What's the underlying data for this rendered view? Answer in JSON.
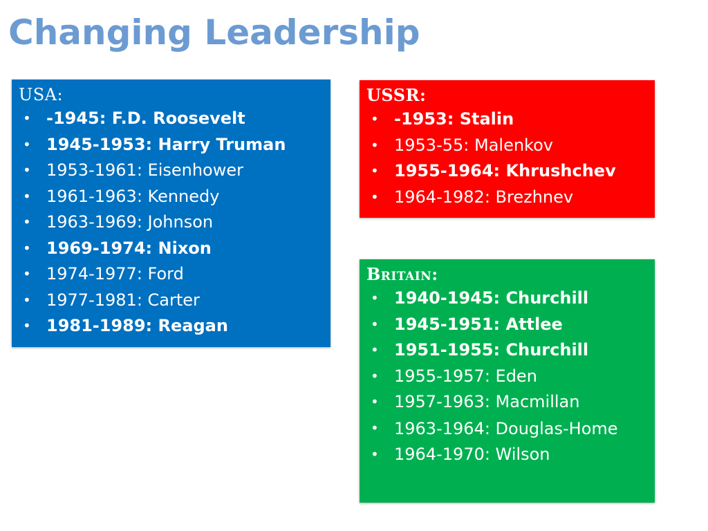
{
  "title": "Changing Leadership",
  "colors": {
    "title": "#6c9bd2",
    "usa": "#0070c0",
    "ussr": "#ff0000",
    "britain": "#00b050",
    "text": "#ffffff"
  },
  "bullet_glyph": "•",
  "usa": {
    "heading": "USA:",
    "items": [
      {
        "text": "-1945: F.D. Roosevelt",
        "bold": true
      },
      {
        "text": "1945-1953: Harry Truman",
        "bold": true
      },
      {
        "text": "1953-1961: Eisenhower",
        "bold": false
      },
      {
        "text": "1961-1963: Kennedy",
        "bold": false
      },
      {
        "text": "1963-1969: Johnson",
        "bold": false
      },
      {
        "text": "1969-1974: Nixon",
        "bold": true
      },
      {
        "text": "1974-1977: Ford",
        "bold": false
      },
      {
        "text": "1977-1981: Carter",
        "bold": false
      },
      {
        "text": "1981-1989: Reagan",
        "bold": true
      }
    ]
  },
  "ussr": {
    "heading": "USSR:",
    "items": [
      {
        "text": "-1953: Stalin",
        "bold": true
      },
      {
        "text": "1953-55: Malenkov",
        "bold": false
      },
      {
        "text": "1955-1964: Khrushchev",
        "bold": true
      },
      {
        "text": "1964-1982: Brezhnev",
        "bold": false
      }
    ]
  },
  "britain": {
    "heading": "Britain:",
    "items": [
      {
        "text": "1940-1945: Churchill",
        "bold": true
      },
      {
        "text": "1945-1951: Attlee",
        "bold": true
      },
      {
        "text": "1951-1955: Churchill",
        "bold": true
      },
      {
        "text": "1955-1957: Eden",
        "bold": false
      },
      {
        "text": "1957-1963: Macmillan",
        "bold": false
      },
      {
        "text": "1963-1964: Douglas-Home",
        "bold": false,
        "wrap": true
      },
      {
        "text": "1964-1970: Wilson",
        "bold": false
      }
    ]
  }
}
